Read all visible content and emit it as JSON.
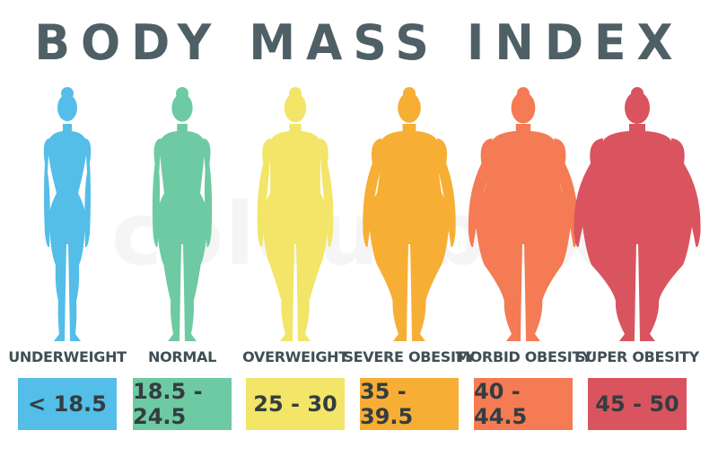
{
  "title": "BODY MASS INDEX",
  "watermark": "colourbox",
  "categories": [
    {
      "label": "UNDERWEIGHT",
      "range": "< 18.5",
      "color": "#54bde8",
      "fatness": 0.0
    },
    {
      "label": "NORMAL",
      "range": "18.5 - 24.5",
      "color": "#6dcaa2",
      "fatness": 0.2
    },
    {
      "label": "OVERWEIGHT",
      "range": "25 - 30",
      "color": "#f2e567",
      "fatness": 0.4
    },
    {
      "label": "SEVERE OBESITY",
      "range": "35 - 39.5",
      "color": "#f7ae35",
      "fatness": 0.6
    },
    {
      "label": "MORBID OBESITY",
      "range": "40 - 44.5",
      "color": "#f47b53",
      "fatness": 0.8
    },
    {
      "label": "SUPER OBESITY",
      "range": "45 - 50",
      "color": "#d9545f",
      "fatness": 1.0
    }
  ]
}
